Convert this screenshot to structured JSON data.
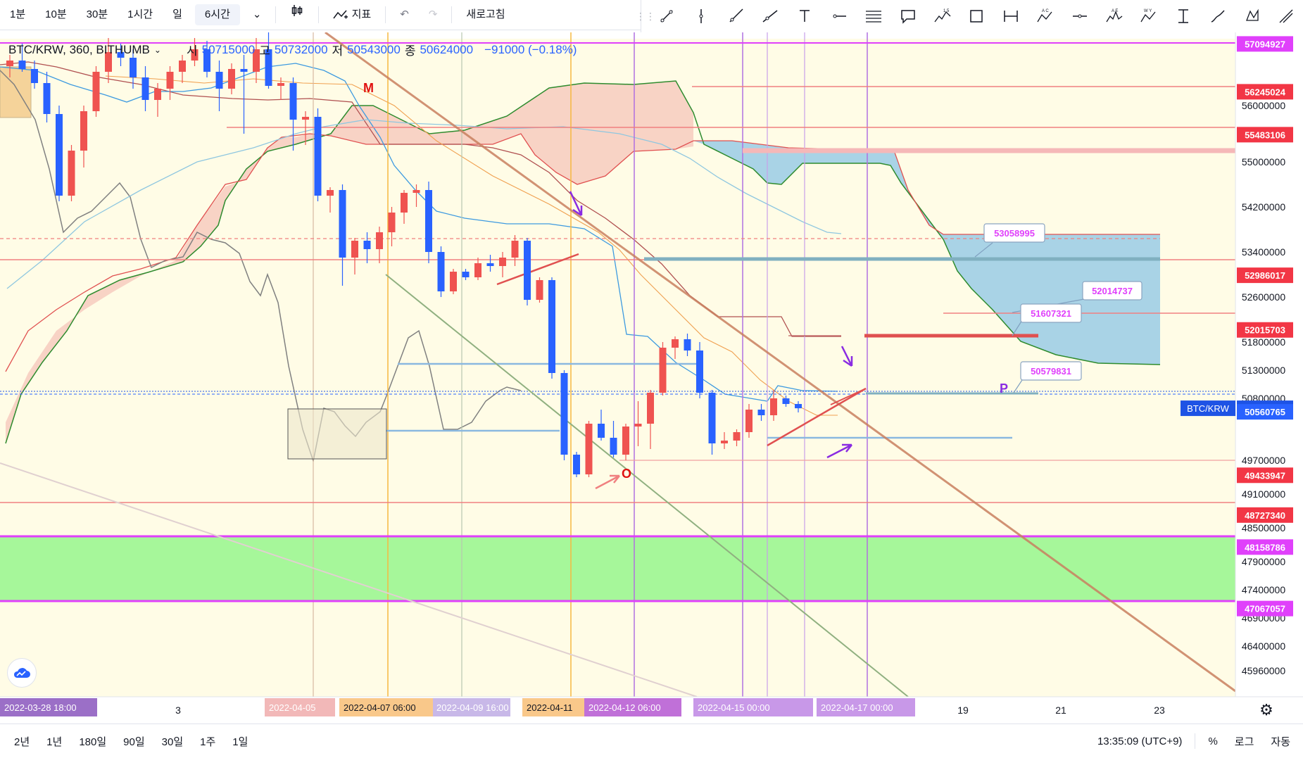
{
  "toolbar": {
    "intervals": [
      "1분",
      "10분",
      "30분",
      "1시간",
      "일",
      "6시간"
    ],
    "active_interval": "6시간",
    "indicators_label": "지표",
    "refresh_label": "새로고침"
  },
  "legend": {
    "symbol": "BTC/KRW, 360, BITHUMB",
    "open_label": "시",
    "open": "50715000",
    "high_label": "고",
    "high": "50732000",
    "low_label": "저",
    "low": "50543000",
    "close_label": "종",
    "close": "50624000",
    "change": "−91000 (−0.18%)"
  },
  "bottom": {
    "ranges": [
      "2년",
      "1년",
      "180일",
      "90일",
      "30일",
      "1주",
      "1일"
    ],
    "time": "13:35:09 (UTC+9)",
    "percent_label": "%",
    "log_label": "로그",
    "auto_label": "자동"
  },
  "colors": {
    "bg_zone": "#fffce6",
    "green_zone": "#a6f79a",
    "up": "#ef5350",
    "down": "#2962ff",
    "cloud_red": "#f8d3c5",
    "cloud_blue": "#a9d3e6"
  },
  "chart_data": {
    "type": "candlestick",
    "symbol": "BTC/KRW",
    "interval": "360",
    "exchange": "BITHUMB",
    "ylim": [
      45500000,
      57300000
    ],
    "y_ticks": [
      56000000,
      55000000,
      54200000,
      53400000,
      52600000,
      51800000,
      51300000,
      50800000,
      49700000,
      49100000,
      48500000,
      47900000,
      47400000,
      46900000,
      46400000,
      45960000
    ],
    "x_ticks": [
      "3",
      "5",
      "19",
      "21",
      "23"
    ],
    "x_highlight_labels": [
      "2022-03-28  18:00",
      "2022-04-05",
      "2022-04-07  06:00",
      "2022-04-09  16:00",
      "2022-04-11",
      "2022-04-12  06:00",
      "2022-04-15  00:00",
      "2022-04-17  00:00"
    ],
    "price_labels": [
      {
        "value": "57094927",
        "color": "#e040fb"
      },
      {
        "value": "56245024",
        "color": "#f23645"
      },
      {
        "value": "55483106",
        "color": "#f23645"
      },
      {
        "value": "52986017",
        "color": "#f23645"
      },
      {
        "value": "52015703",
        "color": "#f23645"
      },
      {
        "value": "50624000",
        "color": "#1e53e5",
        "tag": "BTC/KRW"
      },
      {
        "value": "50560765",
        "color": "#2962ff"
      },
      {
        "value": "49433947",
        "color": "#f23645"
      },
      {
        "value": "48727340",
        "color": "#f23645"
      },
      {
        "value": "48158786",
        "color": "#e040fb"
      },
      {
        "value": "47067057",
        "color": "#e040fb"
      }
    ],
    "callouts": [
      "53058995",
      "52014737",
      "51607321",
      "50579831"
    ],
    "annotations": [
      "M",
      "O",
      "P"
    ],
    "candles": [
      [
        56700000,
        56900000,
        56500000,
        56800000
      ],
      [
        56800000,
        57100000,
        56600000,
        56650000
      ],
      [
        56650000,
        56800000,
        56300000,
        56400000
      ],
      [
        56400000,
        56600000,
        55700000,
        55850000
      ],
      [
        55850000,
        56000000,
        54300000,
        54400000
      ],
      [
        54400000,
        55300000,
        54300000,
        55200000
      ],
      [
        55200000,
        56000000,
        54900000,
        55900000
      ],
      [
        55900000,
        56700000,
        55800000,
        56600000
      ],
      [
        56600000,
        57200000,
        56400000,
        56950000
      ],
      [
        56950000,
        57100000,
        56700000,
        56850000
      ],
      [
        56850000,
        57000000,
        56300000,
        56500000
      ],
      [
        56500000,
        56700000,
        55900000,
        56100000
      ],
      [
        56100000,
        56400000,
        55800000,
        56300000
      ],
      [
        56300000,
        56700000,
        56100000,
        56600000
      ],
      [
        56600000,
        56900000,
        56400000,
        56800000
      ],
      [
        56800000,
        57200000,
        56700000,
        57000000
      ],
      [
        57000000,
        57150000,
        56500000,
        56600000
      ],
      [
        56600000,
        56800000,
        55900000,
        56300000
      ],
      [
        56300000,
        56750000,
        56200000,
        56650000
      ],
      [
        56650000,
        56900000,
        55500000,
        56600000
      ],
      [
        56600000,
        57200000,
        56400000,
        57000000
      ],
      [
        57000000,
        57300000,
        56300000,
        56350000
      ],
      [
        56350000,
        56500000,
        56100000,
        56400000
      ],
      [
        56400000,
        56500000,
        55200000,
        55750000
      ],
      [
        55750000,
        55900000,
        55300000,
        55800000
      ],
      [
        55800000,
        55950000,
        54300000,
        54400000
      ],
      [
        54400000,
        54550000,
        54100000,
        54500000
      ],
      [
        54500000,
        54600000,
        52800000,
        53300000
      ],
      [
        53300000,
        53650000,
        53000000,
        53600000
      ],
      [
        53600000,
        53750000,
        53200000,
        53450000
      ],
      [
        53450000,
        53850000,
        53200000,
        53750000
      ],
      [
        53750000,
        54200000,
        53500000,
        54100000
      ],
      [
        54100000,
        54500000,
        53900000,
        54450000
      ],
      [
        54450000,
        54600000,
        54200000,
        54500000
      ],
      [
        54500000,
        54650000,
        53200000,
        53400000
      ],
      [
        53400000,
        53500000,
        52600000,
        52700000
      ],
      [
        52700000,
        53100000,
        52650000,
        53050000
      ],
      [
        53050000,
        53100000,
        52900000,
        52950000
      ],
      [
        52950000,
        53300000,
        52900000,
        53200000
      ],
      [
        53200000,
        53350000,
        53050000,
        53150000
      ],
      [
        53150000,
        53400000,
        52950000,
        53300000
      ],
      [
        53300000,
        53700000,
        53150000,
        53600000
      ],
      [
        53600000,
        53650000,
        52450000,
        52550000
      ],
      [
        52550000,
        52950000,
        52500000,
        52900000
      ],
      [
        52900000,
        52950000,
        51150000,
        51250000
      ],
      [
        51250000,
        51300000,
        49700000,
        49800000
      ],
      [
        49800000,
        49850000,
        49400000,
        49450000
      ],
      [
        49450000,
        50400000,
        49400000,
        50350000
      ],
      [
        50350000,
        50600000,
        50050000,
        50100000
      ],
      [
        50100000,
        50400000,
        49750000,
        49800000
      ],
      [
        49800000,
        50350000,
        49700000,
        50300000
      ],
      [
        50300000,
        50750000,
        49950000,
        50350000
      ],
      [
        50350000,
        50950000,
        49900000,
        50900000
      ],
      [
        50900000,
        51800000,
        50850000,
        51700000
      ],
      [
        51700000,
        51900000,
        51500000,
        51850000
      ],
      [
        51850000,
        51950000,
        51550000,
        51650000
      ],
      [
        51650000,
        51800000,
        50800000,
        50900000
      ],
      [
        50900000,
        50950000,
        49800000,
        50000000
      ],
      [
        50000000,
        50200000,
        49900000,
        50050000
      ],
      [
        50050000,
        50250000,
        49950000,
        50200000
      ],
      [
        50200000,
        50700000,
        50100000,
        50600000
      ],
      [
        50600000,
        50700000,
        50400000,
        50500000
      ],
      [
        50500000,
        50950000,
        50400000,
        50800000
      ],
      [
        50800000,
        50850000,
        50650000,
        50700000
      ],
      [
        50700000,
        50750000,
        50550000,
        50624000
      ]
    ]
  }
}
